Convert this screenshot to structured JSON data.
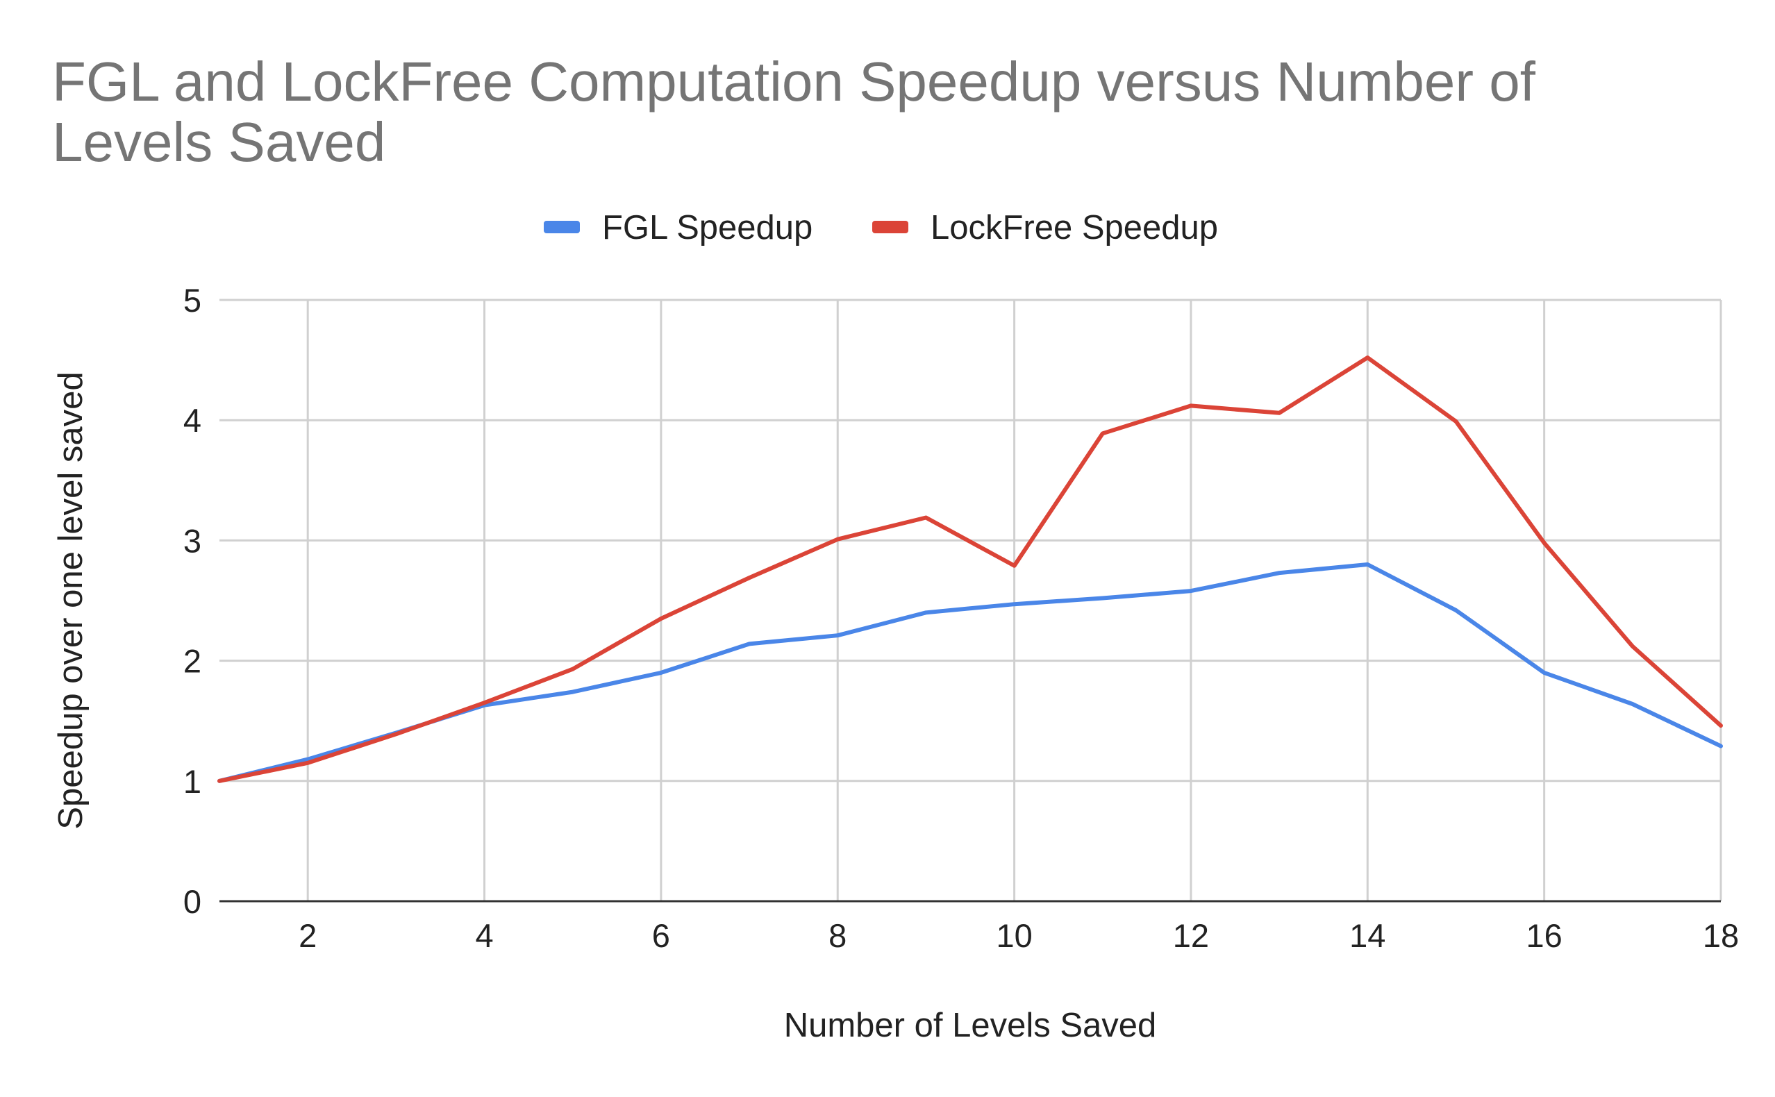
{
  "chart_data": {
    "type": "line",
    "title": "FGL and LockFree Computation Speedup versus Number of Levels Saved",
    "title_lines": [
      "FGL and LockFree Computation Speedup versus Number of",
      "Levels Saved"
    ],
    "xlabel": "Number of Levels Saved",
    "ylabel": "Speedup over one level saved",
    "xlim": [
      1,
      18
    ],
    "ylim": [
      0,
      5
    ],
    "xticks": [
      2,
      4,
      6,
      8,
      10,
      12,
      14,
      16,
      18
    ],
    "yticks": [
      0,
      1,
      2,
      3,
      4,
      5
    ],
    "grid": true,
    "legend_position": "top",
    "x": [
      1,
      2,
      3,
      4,
      5,
      6,
      7,
      8,
      9,
      10,
      11,
      12,
      13,
      14,
      15,
      16,
      17,
      18
    ],
    "series": [
      {
        "name": "FGL Speedup",
        "color": "#4a86e8",
        "values": [
          1.0,
          1.18,
          1.4,
          1.63,
          1.74,
          1.9,
          2.14,
          2.21,
          2.4,
          2.47,
          2.52,
          2.58,
          2.73,
          2.8,
          2.42,
          1.9,
          1.64,
          1.29
        ]
      },
      {
        "name": "LockFree Speedup",
        "color": "#db4437",
        "values": [
          1.0,
          1.15,
          1.39,
          1.65,
          1.93,
          2.35,
          2.69,
          3.01,
          3.19,
          2.79,
          3.89,
          4.12,
          4.06,
          4.52,
          3.99,
          2.98,
          2.12,
          1.46
        ]
      }
    ]
  }
}
